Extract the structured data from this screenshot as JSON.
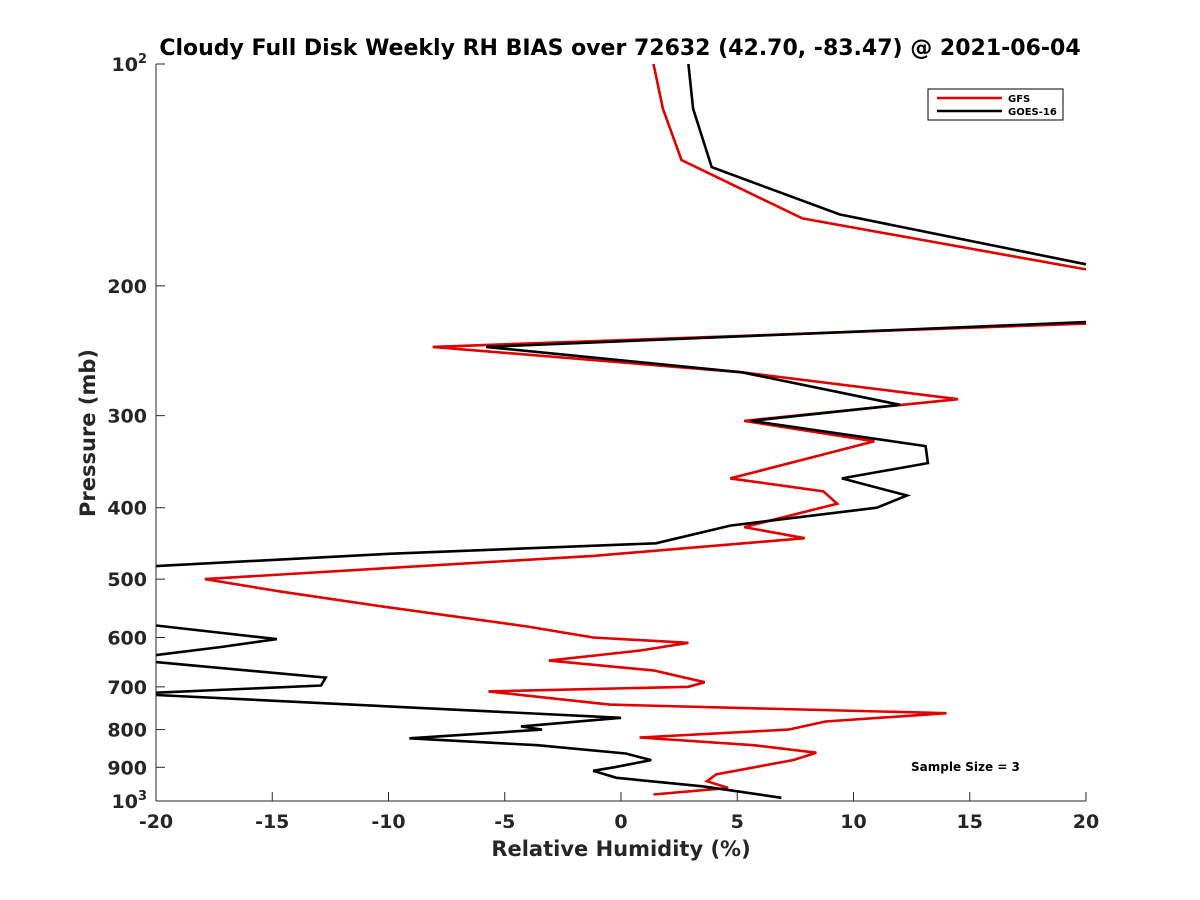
{
  "chart_data": {
    "type": "line",
    "title": "Cloudy Full Disk Weekly RH BIAS over 72632 (42.70, -83.47) @ 2021-06-04",
    "xlabel": "Relative Humidity (%)",
    "ylabel": "Pressure (mb)",
    "xlim": [
      -20,
      20
    ],
    "ylim": [
      100,
      1000
    ],
    "y_scale": "log",
    "y_reversed": true,
    "grid": false,
    "legend_position": "top-right",
    "x_ticks": [
      "-20",
      "-15",
      "-10",
      "-5",
      "0",
      "5",
      "10",
      "15",
      "20"
    ],
    "y_ticks": [
      {
        "value": 100,
        "base": "10",
        "exp": "2"
      },
      {
        "value": 200,
        "label": "200"
      },
      {
        "value": 300,
        "label": "300"
      },
      {
        "value": 400,
        "label": "400"
      },
      {
        "value": 500,
        "label": "500"
      },
      {
        "value": 600,
        "label": "600"
      },
      {
        "value": 700,
        "label": "700"
      },
      {
        "value": 800,
        "label": "800"
      },
      {
        "value": 900,
        "label": "900"
      },
      {
        "value": 1000,
        "base": "10",
        "exp": "3"
      }
    ],
    "series": [
      {
        "name": "GFS",
        "color": "#e00000",
        "points": [
          [
            1.4,
            100
          ],
          [
            1.8,
            115
          ],
          [
            2.6,
            135
          ],
          [
            7.8,
            162
          ],
          [
            20.0,
            190
          ],
          [
            null,
            200
          ],
          [
            20.0,
            225
          ],
          [
            -8.1,
            242
          ],
          [
            5.2,
            262
          ],
          [
            14.5,
            285
          ],
          [
            5.3,
            305
          ],
          [
            10.9,
            325
          ],
          [
            4.7,
            365
          ],
          [
            8.7,
            380
          ],
          [
            9.3,
            395
          ],
          [
            5.3,
            425
          ],
          [
            7.9,
            440
          ],
          [
            -1.2,
            465
          ],
          [
            -11.0,
            485
          ],
          [
            -17.9,
            500
          ],
          [
            -14.6,
            520
          ],
          [
            -10.2,
            545
          ],
          [
            -4.0,
            580
          ],
          [
            -1.2,
            600
          ],
          [
            2.9,
            610
          ],
          [
            0.8,
            625
          ],
          [
            -3.1,
            645
          ],
          [
            1.4,
            665
          ],
          [
            3.6,
            690
          ],
          [
            2.9,
            700
          ],
          [
            -5.7,
            710
          ],
          [
            -0.5,
            740
          ],
          [
            14.0,
            760
          ],
          [
            8.8,
            780
          ],
          [
            7.2,
            800
          ],
          [
            0.8,
            820
          ],
          [
            5.7,
            840
          ],
          [
            8.4,
            860
          ],
          [
            7.4,
            880
          ],
          [
            4.1,
            920
          ],
          [
            3.7,
            940
          ],
          [
            4.6,
            960
          ],
          [
            1.4,
            980
          ]
        ]
      },
      {
        "name": "GOES-16",
        "color": "#000000",
        "points": [
          [
            2.9,
            100
          ],
          [
            3.1,
            115
          ],
          [
            3.9,
            138
          ],
          [
            9.4,
            160
          ],
          [
            20.0,
            187
          ],
          [
            null,
            200
          ],
          [
            20.0,
            224
          ],
          [
            -5.8,
            242
          ],
          [
            5.2,
            262
          ],
          [
            12.0,
            290
          ],
          [
            5.6,
            305
          ],
          [
            13.1,
            330
          ],
          [
            13.2,
            348
          ],
          [
            9.5,
            365
          ],
          [
            12.3,
            385
          ],
          [
            11.0,
            400
          ],
          [
            4.7,
            423
          ],
          [
            1.5,
            447
          ],
          [
            -10.0,
            462
          ],
          [
            -20.0,
            480
          ],
          [
            null,
            560
          ],
          [
            -20.0,
            578
          ],
          [
            -14.8,
            603
          ],
          [
            -17.2,
            618
          ],
          [
            -20.0,
            634
          ],
          [
            null,
            640
          ],
          [
            -20.0,
            648
          ],
          [
            -12.7,
            680
          ],
          [
            -12.9,
            697
          ],
          [
            -20.0,
            713
          ],
          [
            null,
            714
          ],
          [
            -20.0,
            718
          ],
          [
            0.0,
            771
          ],
          [
            -4.3,
            792
          ],
          [
            -3.4,
            800
          ],
          [
            -9.1,
            822
          ],
          [
            -3.6,
            840
          ],
          [
            0.2,
            862
          ],
          [
            1.3,
            880
          ],
          [
            -0.3,
            900
          ],
          [
            -1.2,
            910
          ],
          [
            -0.2,
            930
          ],
          [
            3.5,
            955
          ],
          [
            5.0,
            970
          ],
          [
            6.9,
            990
          ]
        ]
      }
    ],
    "annotations": [
      "Sample Size = 3"
    ]
  }
}
